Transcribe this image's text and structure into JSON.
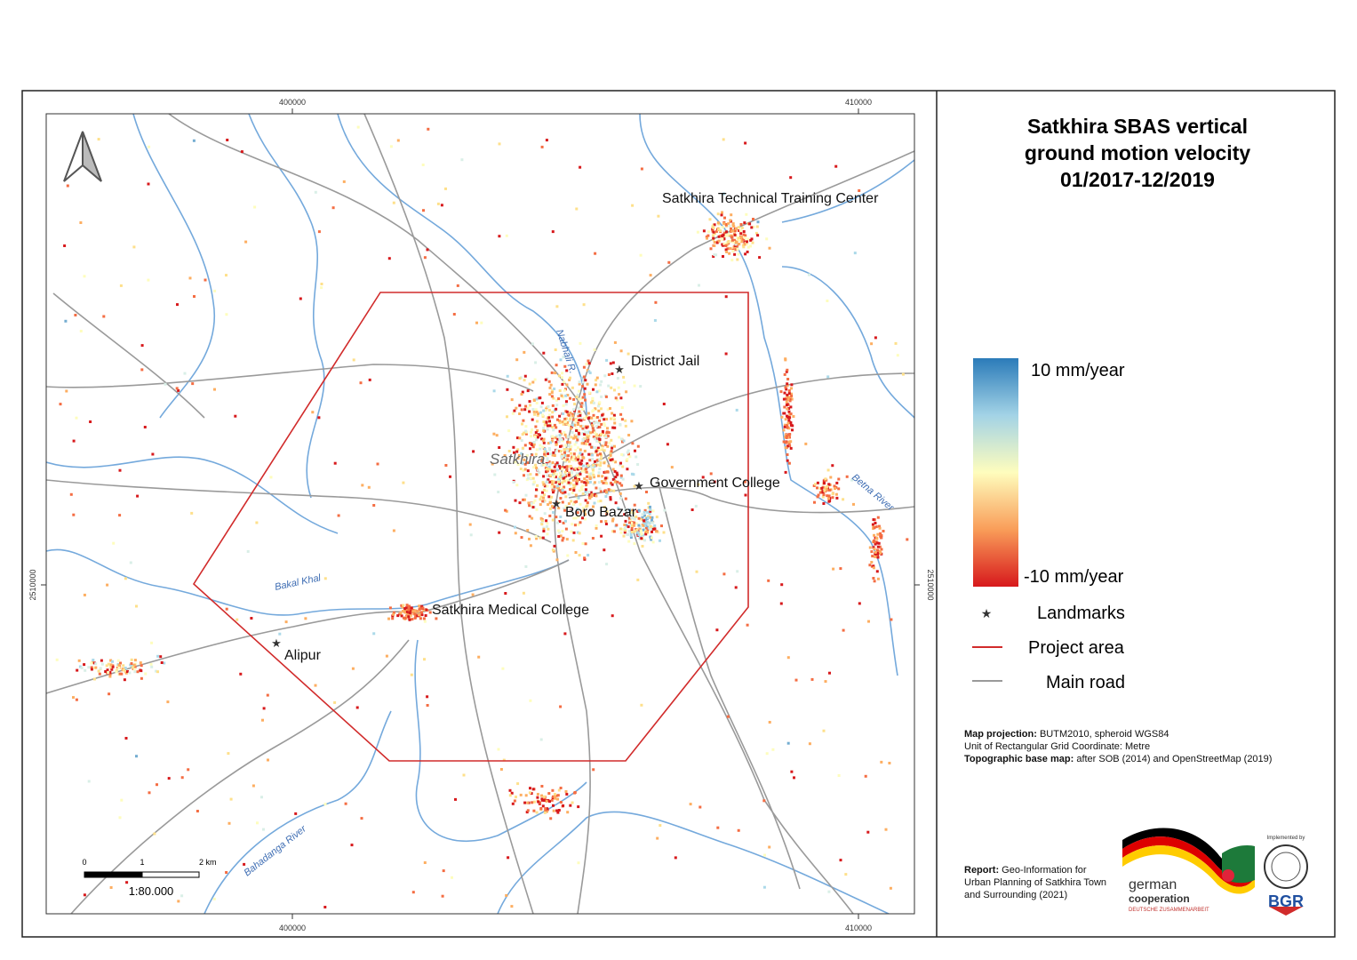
{
  "title": [
    "Satkhira SBAS vertical",
    "ground motion velocity",
    "01/2017-12/2019"
  ],
  "grid_labels": {
    "top": [
      "400000",
      "410000"
    ],
    "bottom": [
      "400000",
      "410000"
    ],
    "left": "2510000",
    "right": "2510000"
  },
  "places": [
    "Satkhira Technical Training Center",
    "District Jail",
    "Government College",
    "Boro Bazar",
    "Satkhira Medical College",
    "Alipur"
  ],
  "town": "Satkhira",
  "rivers": [
    "Nabhali R.",
    "Betna River",
    "Bakal Khal",
    "Bahadanga River"
  ],
  "legend": {
    "max": "10 mm/year",
    "min": "-10 mm/year",
    "items": [
      "Landmarks",
      "Project area",
      "Main road"
    ]
  },
  "scale_bar": {
    "ticks": [
      "0",
      "1",
      "2 km"
    ],
    "ratio": "1:80.000"
  },
  "notes": [
    {
      "label": "Map projection:",
      "text": "BUTM2010, spheroid WGS84"
    },
    {
      "text": "Unit of Rectangular Grid Coordinate: Metre"
    },
    {
      "label": "Topographic base map:",
      "text": "after SOB (2014) and OpenStreetMap (2019)"
    }
  ],
  "report": {
    "label": "Report:",
    "text": "Geo-Information for Urban Planning of Satkhira Town and Surrounding (2021)"
  },
  "logos": {
    "german": "german",
    "cooperation": "cooperation",
    "deutsche": "DEUTSCHE ZUSAMMENARBEIT",
    "implemented": "Implemented by",
    "bgr": "BGR"
  }
}
